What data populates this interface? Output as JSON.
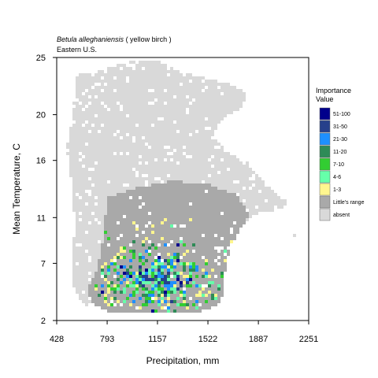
{
  "chart_data": {
    "type": "heatmap",
    "title": {
      "species": "Betula alleghaniensis",
      "common": " ( yellow birch )",
      "region": "Eastern U.S."
    },
    "xlabel": "Precipitation, mm",
    "ylabel": "Mean Temperature, C",
    "xlim": [
      428,
      2251
    ],
    "ylim": [
      2,
      25
    ],
    "x_ticks": [
      428,
      793,
      1157,
      1522,
      1887,
      2251
    ],
    "y_ticks": [
      2,
      7,
      11,
      16,
      20,
      25
    ],
    "grid": false,
    "legend": {
      "title_line1": "Importance",
      "title_line2": "Value",
      "placement": "right",
      "items": [
        {
          "label": "51-100",
          "color": "#00008b"
        },
        {
          "label": "31-50",
          "color": "#27408b"
        },
        {
          "label": "21-30",
          "color": "#1e90ff"
        },
        {
          "label": "11-20",
          "color": "#2e8b57"
        },
        {
          "label": "7-10",
          "color": "#32cd32"
        },
        {
          "label": "4-6",
          "color": "#66ffaa"
        },
        {
          "label": "1-3",
          "color": "#fff68f"
        },
        {
          "label": "Little's range",
          "color": "#a9a9a9"
        },
        {
          "label": "absent",
          "color": "#d9d9d9"
        }
      ]
    },
    "regions": {
      "absent": [
        [
          580,
          23.8
        ],
        [
          650,
          23.5
        ],
        [
          1000,
          24.8
        ],
        [
          1160,
          24.8
        ],
        [
          1300,
          23.8
        ],
        [
          1500,
          23.2
        ],
        [
          1700,
          22.6
        ],
        [
          1800,
          22.0
        ],
        [
          1780,
          20.6
        ],
        [
          1620,
          19.6
        ],
        [
          1560,
          18.2
        ],
        [
          1650,
          16.8
        ],
        [
          1790,
          16.0
        ],
        [
          1880,
          14.8
        ],
        [
          2000,
          13.3
        ],
        [
          2100,
          12.3
        ],
        [
          2060,
          11.8
        ],
        [
          1900,
          11.4
        ],
        [
          1720,
          10.3
        ],
        [
          1550,
          9.3
        ],
        [
          1300,
          8.4
        ],
        [
          950,
          7.2
        ],
        [
          800,
          5.3
        ],
        [
          650,
          3.2
        ],
        [
          560,
          4.2
        ],
        [
          540,
          6.5
        ],
        [
          560,
          10.5
        ],
        [
          530,
          14.5
        ],
        [
          500,
          17.0
        ],
        [
          540,
          19.5
        ],
        [
          560,
          22.0
        ]
      ],
      "littles_range": [
        [
          800,
          12.8
        ],
        [
          1000,
          13.6
        ],
        [
          1250,
          14.2
        ],
        [
          1500,
          14.0
        ],
        [
          1720,
          13.0
        ],
        [
          1830,
          11.5
        ],
        [
          1780,
          10.3
        ],
        [
          1690,
          8.6
        ],
        [
          1650,
          6.6
        ],
        [
          1620,
          3.5
        ],
        [
          1450,
          2.6
        ],
        [
          1150,
          2.7
        ],
        [
          900,
          2.6
        ],
        [
          800,
          2.7
        ],
        [
          720,
          3.3
        ],
        [
          650,
          3.8
        ],
        [
          660,
          5.0
        ],
        [
          720,
          6.5
        ],
        [
          760,
          8.8
        ],
        [
          780,
          11.0
        ]
      ]
    },
    "importance_cells": {
      "description_free": true,
      "x_range": [
        700,
        1800
      ],
      "y_range": [
        2.8,
        11.0
      ]
    }
  }
}
